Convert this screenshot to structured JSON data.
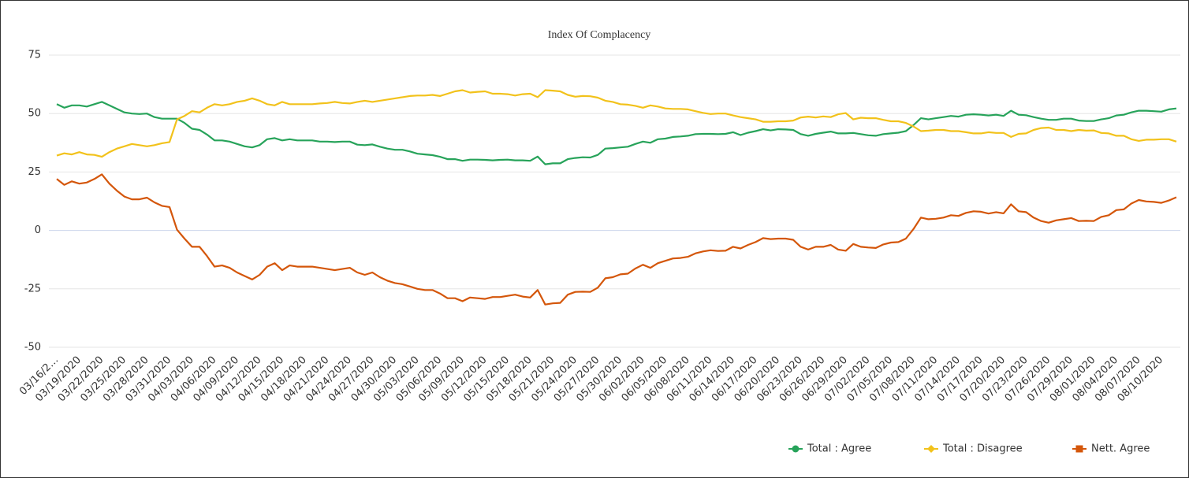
{
  "chart_data": {
    "type": "line",
    "title": "Index Of Complacency",
    "categories": [
      "03/16/2…",
      null,
      null,
      "03/19/2020",
      null,
      null,
      "03/22/2020",
      null,
      null,
      "03/25/2020",
      null,
      null,
      "03/28/2020",
      null,
      null,
      "03/31/2020",
      null,
      null,
      "04/03/2020",
      null,
      null,
      "04/06/2020",
      null,
      null,
      "04/09/2020",
      null,
      null,
      "04/12/2020",
      null,
      null,
      "04/15/2020",
      null,
      null,
      "04/18/2020",
      null,
      null,
      "04/21/2020",
      null,
      null,
      "04/24/2020",
      null,
      null,
      "04/27/2020",
      null,
      null,
      "04/30/2020",
      null,
      null,
      "05/03/2020",
      null,
      null,
      "05/06/2020",
      null,
      null,
      "05/09/2020",
      null,
      null,
      "05/12/2020",
      null,
      null,
      "05/15/2020",
      null,
      null,
      "05/18/2020",
      null,
      null,
      "05/21/2020",
      null,
      null,
      "05/24/2020",
      null,
      null,
      "05/27/2020",
      null,
      null,
      "05/30/2020",
      null,
      null,
      "06/02/2020",
      null,
      null,
      "06/05/2020",
      null,
      null,
      "06/08/2020",
      null,
      null,
      "06/11/2020",
      null,
      null,
      "06/14/2020",
      null,
      null,
      "06/17/2020",
      null,
      null,
      "06/20/2020",
      null,
      null,
      "06/23/2020",
      null,
      null,
      "06/26/2020",
      null,
      null,
      "06/29/2020",
      null,
      null,
      "07/02/2020",
      null,
      null,
      "07/05/2020",
      null,
      null,
      "07/08/2020",
      null,
      null,
      "07/11/2020",
      null,
      null,
      "07/14/2020",
      null,
      null,
      "07/17/2020",
      null,
      null,
      "07/20/2020",
      null,
      null,
      "07/23/2020",
      null,
      null,
      "07/26/2020",
      null,
      null,
      "07/29/2020",
      null,
      null,
      "08/01/2020",
      null,
      null,
      "08/04/2020",
      null,
      null,
      "08/07/2020",
      null,
      null,
      "08/10/2020",
      null,
      null
    ],
    "series": [
      {
        "name": "Total : Agree",
        "color": "#27a35a",
        "marker": "circle",
        "values": [
          54,
          52.5,
          53.5,
          53.5,
          53,
          54,
          55,
          53.5,
          52,
          50.5,
          50,
          49.8,
          50,
          48.5,
          47.8,
          47.8,
          47.8,
          46,
          43.5,
          43,
          41,
          38.5,
          38.5,
          38,
          37,
          36,
          35.5,
          36.5,
          39,
          39.5,
          38.5,
          39,
          38.5,
          38.5,
          38.5,
          38,
          38,
          37.8,
          38,
          38,
          36.7,
          36.5,
          36.8,
          35.8,
          35,
          34.5,
          34.5,
          33.8,
          32.8,
          32.5,
          32.2,
          31.5,
          30.5,
          30.5,
          29.8,
          30.3,
          30.3,
          30.2,
          30,
          30.2,
          30.3,
          30,
          30,
          29.8,
          31.6,
          28.3,
          28.7,
          28.7,
          30.5,
          31,
          31.3,
          31.2,
          32.3,
          35,
          35.2,
          35.5,
          35.8,
          37,
          38,
          37.5,
          39,
          39.3,
          40,
          40.2,
          40.5,
          41.2,
          41.3,
          41.3,
          41.2,
          41.3,
          42,
          40.8,
          41.8,
          42.5,
          43.3,
          42.8,
          43.3,
          43.2,
          43,
          41.2,
          40.5,
          41.3,
          41.8,
          42.3,
          41.5,
          41.5,
          41.7,
          41.2,
          40.7,
          40.5,
          41.2,
          41.5,
          41.8,
          42.5,
          45,
          48,
          47.5,
          48,
          48.5,
          49,
          48.7,
          49.5,
          49.7,
          49.5,
          49.2,
          49.5,
          49,
          51.2,
          49.5,
          49.3,
          48.5,
          47.8,
          47.3,
          47.3,
          47.8,
          47.8,
          47,
          46.8,
          46.8,
          47.5,
          48,
          49.2,
          49.5,
          50.5,
          51.2,
          51.2,
          51,
          50.8,
          51.8,
          52.2
        ]
      },
      {
        "name": "Total : Disagree",
        "color": "#f2c21b",
        "marker": "diamond",
        "values": [
          32,
          33,
          32.5,
          33.5,
          32.5,
          32.3,
          31.5,
          33.5,
          35,
          36,
          37,
          36.5,
          36,
          36.5,
          37.3,
          37.8,
          47.5,
          49,
          51,
          50.5,
          52.5,
          54,
          53.5,
          54,
          55,
          55.5,
          56.5,
          55.5,
          54,
          53.5,
          55,
          54,
          54,
          54,
          54,
          54.3,
          54.5,
          55,
          54.5,
          54.3,
          55,
          55.5,
          55,
          55.5,
          56,
          56.5,
          57,
          57.5,
          57.7,
          57.7,
          58,
          57.5,
          58.5,
          59.5,
          60,
          59,
          59.3,
          59.5,
          58.5,
          58.5,
          58.3,
          57.7,
          58.3,
          58.5,
          57,
          60,
          59.8,
          59.5,
          58,
          57.2,
          57.5,
          57.4,
          56.8,
          55.5,
          55,
          54,
          53.8,
          53.3,
          52.5,
          53.5,
          53,
          52.2,
          52,
          52,
          51.8,
          51,
          50.3,
          49.8,
          50,
          50,
          49.2,
          48.5,
          48,
          47.5,
          46.5,
          46.5,
          46.7,
          46.7,
          47,
          48.3,
          48.7,
          48.3,
          48.8,
          48.5,
          49.7,
          50.2,
          47.5,
          48.2,
          48,
          48,
          47.3,
          46.7,
          46.7,
          46,
          44.5,
          42.5,
          42.7,
          43,
          43,
          42.5,
          42.5,
          42,
          41.5,
          41.5,
          42,
          41.7,
          41.7,
          40,
          41.3,
          41.5,
          43,
          43.8,
          44,
          43,
          43,
          42.5,
          43,
          42.7,
          42.8,
          41.7,
          41.5,
          40.5,
          40.5,
          39,
          38.3,
          38.8,
          38.8,
          39,
          39,
          38
        ]
      },
      {
        "name": "Nett. Agree",
        "color": "#d4560a",
        "marker": "square",
        "values": [
          22,
          19.5,
          21,
          20,
          20.5,
          22,
          24,
          20,
          17,
          14.5,
          13.3,
          13.3,
          14,
          12,
          10.5,
          10,
          0.3,
          -3.5,
          -7,
          -7,
          -11,
          -15.5,
          -15,
          -16,
          -18,
          -19.5,
          -21,
          -19,
          -15.5,
          -14,
          -17,
          -15,
          -15.5,
          -15.5,
          -15.5,
          -16,
          -16.5,
          -17,
          -16.5,
          -16,
          -18,
          -19,
          -18,
          -20,
          -21.5,
          -22.5,
          -23,
          -24,
          -25,
          -25.5,
          -25.5,
          -27,
          -29,
          -29,
          -30.3,
          -28.7,
          -29,
          -29.3,
          -28.5,
          -28.5,
          -28,
          -27.5,
          -28.3,
          -28.7,
          -25.5,
          -31.7,
          -31.2,
          -31,
          -27.5,
          -26.3,
          -26.2,
          -26.3,
          -24.5,
          -20.5,
          -20,
          -18.8,
          -18.5,
          -16.3,
          -14.7,
          -16,
          -14,
          -13,
          -12,
          -11.8,
          -11.3,
          -9.8,
          -9,
          -8.5,
          -8.8,
          -8.7,
          -7,
          -7.7,
          -6.2,
          -5,
          -3.3,
          -3.7,
          -3.5,
          -3.5,
          -4,
          -7,
          -8.2,
          -7,
          -7,
          -6.2,
          -8.2,
          -8.7,
          -5.8,
          -7,
          -7.3,
          -7.5,
          -6,
          -5.2,
          -5,
          -3.5,
          0.5,
          5.5,
          4.8,
          5,
          5.5,
          6.5,
          6.2,
          7.5,
          8.2,
          8,
          7.2,
          7.8,
          7.3,
          11.2,
          8.2,
          7.8,
          5.5,
          4,
          3.3,
          4.3,
          4.8,
          5.3,
          4,
          4.1,
          4,
          5.8,
          6.5,
          8.7,
          9,
          11.5,
          13,
          12.4,
          12.2,
          11.8,
          12.8,
          14.2
        ]
      }
    ],
    "ylim": [
      -50,
      75
    ],
    "yticks": [
      -50,
      -25,
      0,
      25,
      50,
      75
    ],
    "grid": true,
    "legend": "bottom-right"
  }
}
